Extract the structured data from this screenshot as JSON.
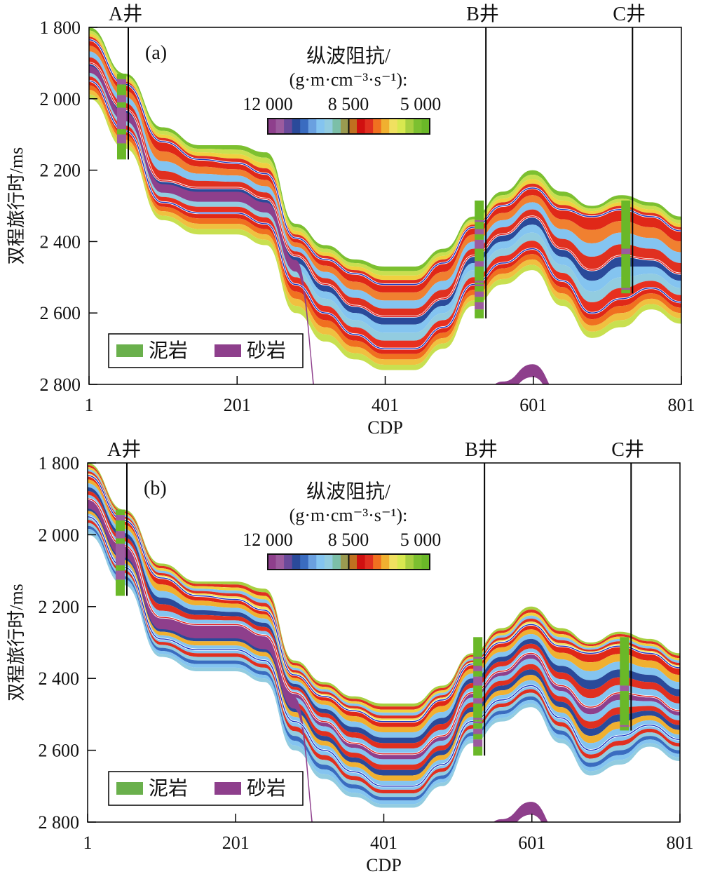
{
  "chart_data": [
    {
      "type": "heatmap",
      "panel_label": "(a)",
      "xlabel": "CDP",
      "ylabel": "双程旅行时/ms",
      "xlim": [
        1,
        801
      ],
      "ylim": [
        1800,
        2800
      ],
      "y_inverted": true,
      "x_ticks": [
        "1",
        "201",
        "401",
        "601",
        "801"
      ],
      "x_tick_values": [
        1,
        201,
        401,
        601,
        801
      ],
      "y_ticks": [
        "1 800",
        "2 000",
        "2 200",
        "2 400",
        "2 600",
        "2 800"
      ],
      "y_tick_values": [
        1800,
        2000,
        2200,
        2400,
        2600,
        2800
      ],
      "colorbar": {
        "title_line1": "纵波阻抗/",
        "title_line2": "(g·m·cm⁻³·s⁻¹):",
        "tick_labels": [
          "12 000",
          "8 500",
          "5 000"
        ],
        "tick_values": [
          12000,
          8500,
          5000
        ],
        "colors": [
          "#8e3f8c",
          "#9c5b9e",
          "#6a4a9a",
          "#2a4a9a",
          "#3a6cc0",
          "#6aa0e0",
          "#84c4f0",
          "#92cce0",
          "#7cbfa8",
          "#9a9a50",
          "#c07020",
          "#d01010",
          "#e03020",
          "#f07020",
          "#f0b030",
          "#f0e060",
          "#d8e850",
          "#a8d040",
          "#7cc030",
          "#6ab828"
        ]
      },
      "wells": [
        {
          "name": "A井",
          "cdp": 54,
          "log_top": 1930,
          "log_bottom": 2170,
          "layers": [
            [
              "mud",
              1930,
              1945
            ],
            [
              "sand",
              1945,
              1960
            ],
            [
              "mud",
              1960,
              1990
            ],
            [
              "sand",
              1990,
              2010
            ],
            [
              "mud",
              2010,
              2025
            ],
            [
              "sand",
              2025,
              2085
            ],
            [
              "mud",
              2085,
              2100
            ],
            [
              "sand",
              2100,
              2125
            ],
            [
              "mud",
              2125,
              2170
            ]
          ]
        },
        {
          "name": "B井",
          "cdp": 537,
          "log_top": 2285,
          "log_bottom": 2615,
          "layers": [
            [
              "mud",
              2285,
              2340
            ],
            [
              "sand",
              2340,
              2345
            ],
            [
              "mud",
              2345,
              2365
            ],
            [
              "sand",
              2365,
              2380
            ],
            [
              "mud",
              2380,
              2395
            ],
            [
              "sand",
              2395,
              2420
            ],
            [
              "mud",
              2420,
              2455
            ],
            [
              "sand",
              2455,
              2470
            ],
            [
              "mud",
              2470,
              2510
            ],
            [
              "sand",
              2510,
              2515
            ],
            [
              "mud",
              2515,
              2520
            ],
            [
              "sand",
              2520,
              2525
            ],
            [
              "mud",
              2525,
              2540
            ],
            [
              "sand",
              2540,
              2555
            ],
            [
              "mud",
              2555,
              2570
            ],
            [
              "sand",
              2570,
              2590
            ],
            [
              "mud",
              2590,
              2615
            ]
          ]
        },
        {
          "name": "C井",
          "cdp": 735,
          "log_top": 2285,
          "log_bottom": 2545,
          "layers": [
            [
              "mud",
              2285,
              2420
            ],
            [
              "sand",
              2420,
              2435
            ],
            [
              "mud",
              2435,
              2530
            ],
            [
              "sand",
              2530,
              2535
            ],
            [
              "mud",
              2535,
              2545
            ]
          ]
        }
      ],
      "horizons": {
        "cdp": [
          1,
          50,
          100,
          150,
          200,
          240,
          280,
          320,
          360,
          400,
          440,
          480,
          520,
          560,
          600,
          640,
          680,
          720,
          760,
          801
        ],
        "top_boundary": [
          1800,
          1930,
          2080,
          2130,
          2130,
          2150,
          2350,
          2410,
          2450,
          2470,
          2470,
          2420,
          2330,
          2260,
          2200,
          2260,
          2300,
          2270,
          2290,
          2330
        ],
        "horizon_1_blue": [
          1835,
          1960,
          2120,
          2170,
          2180,
          2210,
          2390,
          2450,
          2490,
          2520,
          2520,
          2460,
          2360,
          2300,
          2250,
          2310,
          2330,
          2310,
          2330,
          2370
        ],
        "horizon_2_red": [
          1900,
          2030,
          2230,
          2250,
          2250,
          2280,
          2440,
          2520,
          2580,
          2610,
          2610,
          2560,
          2440,
          2380,
          2330,
          2420,
          2480,
          2440,
          2450,
          2490
        ],
        "horizon_3_blue": [
          1950,
          2090,
          2290,
          2320,
          2320,
          2350,
          2520,
          2600,
          2660,
          2700,
          2700,
          2640,
          2520,
          2460,
          2420,
          2510,
          2600,
          2560,
          2530,
          2570
        ],
        "bottom_boundary": [
          2000,
          2140,
          2340,
          2380,
          2380,
          2410,
          2600,
          2680,
          2730,
          2760,
          2760,
          2700,
          2580,
          2520,
          2480,
          2580,
          2670,
          2640,
          2590,
          2630
        ]
      },
      "legend": [
        {
          "label": "泥岩",
          "color": "#6ab04c"
        },
        {
          "label": "砂岩",
          "color": "#8e3f8c"
        }
      ]
    },
    {
      "type": "heatmap",
      "panel_label": "(b)",
      "xlabel": "CDP",
      "ylabel": "双程旅行时/ms",
      "xlim": [
        1,
        801
      ],
      "ylim": [
        1800,
        2800
      ],
      "y_inverted": true,
      "x_ticks": [
        "1",
        "201",
        "401",
        "601",
        "801"
      ],
      "x_tick_values": [
        1,
        201,
        401,
        601,
        801
      ],
      "y_ticks": [
        "1 800",
        "2 000",
        "2 200",
        "2 400",
        "2 600",
        "2 800"
      ],
      "y_tick_values": [
        1800,
        2000,
        2200,
        2400,
        2600,
        2800
      ],
      "colorbar": {
        "title_line1": "纵波阻抗/",
        "title_line2": "(g·m·cm⁻³·s⁻¹):",
        "tick_labels": [
          "12 000",
          "8 500",
          "5 000"
        ],
        "tick_values": [
          12000,
          8500,
          5000
        ]
      },
      "wells": [
        {
          "name": "A井",
          "cdp": 54
        },
        {
          "name": "B井",
          "cdp": 537
        },
        {
          "name": "C井",
          "cdp": 735
        }
      ],
      "legend": [
        {
          "label": "泥岩",
          "color": "#6ab04c"
        },
        {
          "label": "砂岩",
          "color": "#8e3f8c"
        }
      ]
    }
  ],
  "panels": {
    "a": {
      "label": "(a)"
    },
    "b": {
      "label": "(b)"
    }
  },
  "axis": {
    "xlabel": "CDP",
    "ylabel": "双程旅行时/ms"
  },
  "colorbar": {
    "title1": "纵波阻抗/",
    "title2": "(g·m·cm⁻³·s⁻¹):",
    "t0": "12 000",
    "t1": "8 500",
    "t2": "5 000"
  },
  "legend": {
    "mud": "泥岩",
    "sand": "砂岩"
  },
  "wells": {
    "a": "A井",
    "b": "B井",
    "c": "C井"
  }
}
